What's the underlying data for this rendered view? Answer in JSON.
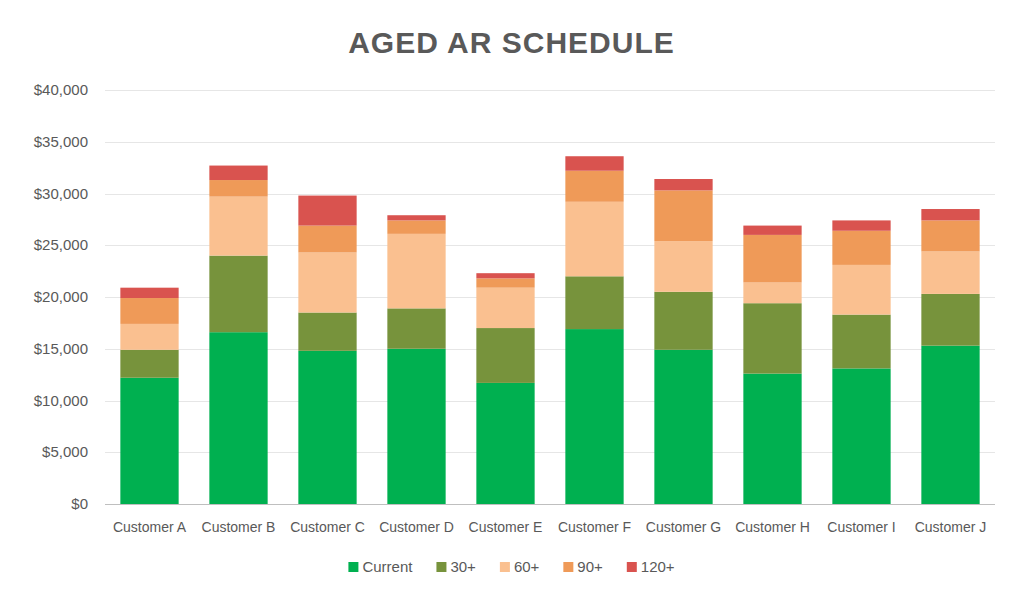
{
  "chart_data": {
    "type": "bar",
    "stacked": true,
    "title": "AGED AR SCHEDULE",
    "categories": [
      "Customer A",
      "Customer B",
      "Customer C",
      "Customer D",
      "Customer E",
      "Customer F",
      "Customer G",
      "Customer H",
      "Customer I",
      "Customer J"
    ],
    "series": [
      {
        "name": "Current",
        "color": "#00b050",
        "values": [
          12200,
          16600,
          14800,
          15000,
          11700,
          16900,
          14900,
          12600,
          13100,
          15300
        ]
      },
      {
        "name": "30+",
        "color": "#77933c",
        "values": [
          2700,
          7400,
          3700,
          3900,
          5300,
          5100,
          5600,
          6800,
          5200,
          5000
        ]
      },
      {
        "name": "60+",
        "color": "#fac090",
        "values": [
          2500,
          5700,
          5800,
          7200,
          3900,
          7200,
          4900,
          2000,
          4800,
          4100
        ]
      },
      {
        "name": "90+",
        "color": "#ef9a58",
        "values": [
          2500,
          1600,
          2600,
          1300,
          900,
          3000,
          4900,
          4600,
          3300,
          3000
        ]
      },
      {
        "name": "120+",
        "color": "#d9534f",
        "values": [
          1000,
          1400,
          2900,
          500,
          500,
          1400,
          1100,
          900,
          1000,
          1100
        ]
      }
    ],
    "ylim": [
      0,
      40000
    ],
    "yticks": [
      {
        "value": 0,
        "label": "$0"
      },
      {
        "value": 5000,
        "label": "$5,000"
      },
      {
        "value": 10000,
        "label": "$10,000"
      },
      {
        "value": 15000,
        "label": "$15,000"
      },
      {
        "value": 20000,
        "label": "$20,000"
      },
      {
        "value": 25000,
        "label": "$25,000"
      },
      {
        "value": 30000,
        "label": "$30,000"
      },
      {
        "value": 35000,
        "label": "$35,000"
      },
      {
        "value": 40000,
        "label": "$40,000"
      }
    ],
    "grid": true,
    "legend": "bottom"
  }
}
